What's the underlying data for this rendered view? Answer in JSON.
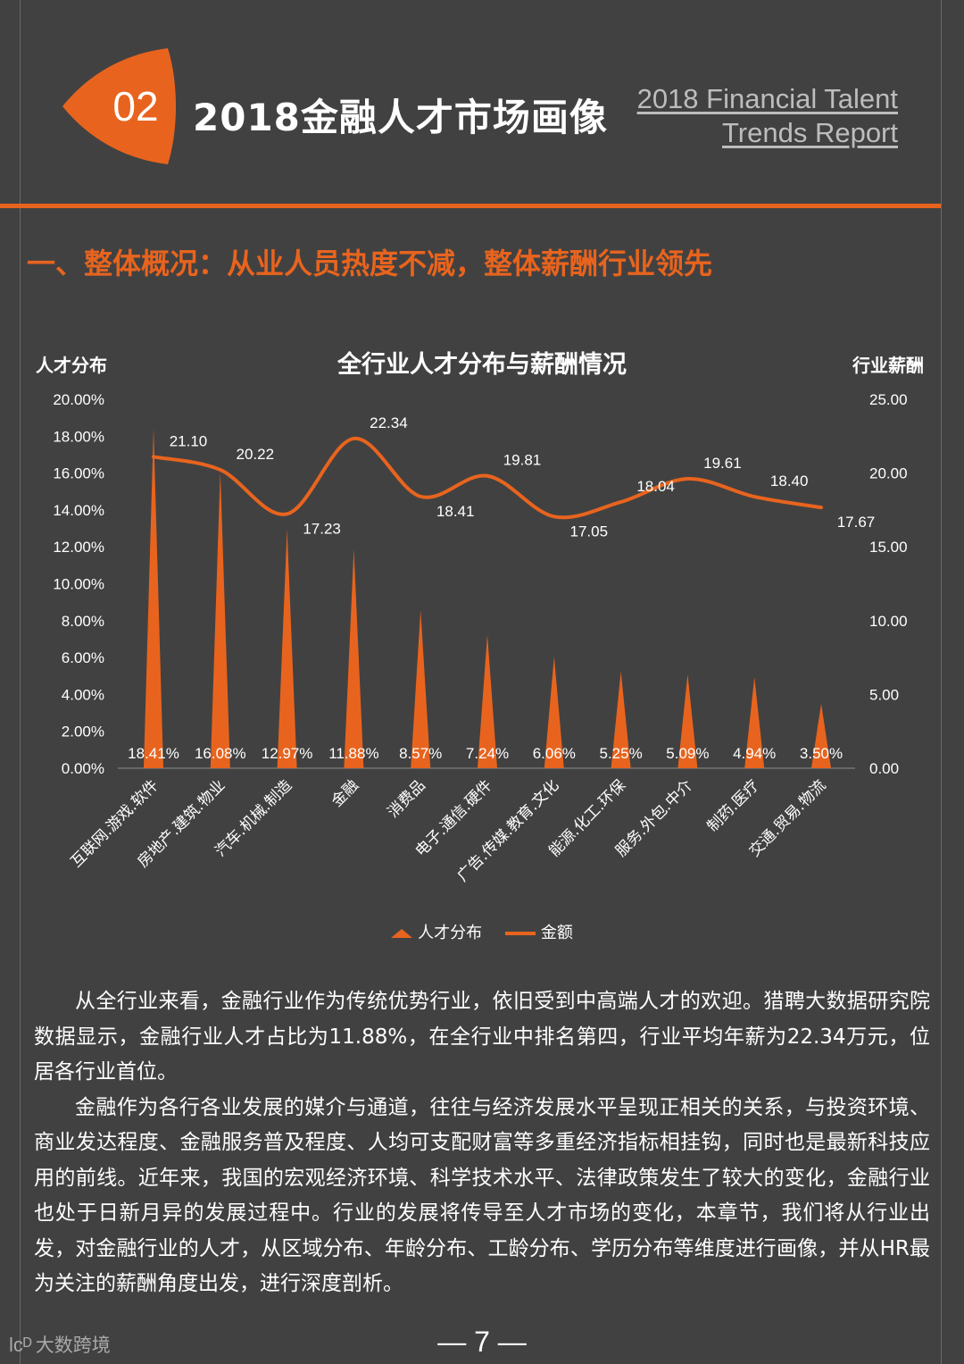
{
  "header": {
    "section_number": "02",
    "title_cn": "2018金融人才市场画像",
    "title_en_line1": "2018 Financial Talent",
    "title_en_line2": "Trends Report"
  },
  "section_heading": "一、整体概况：从业人员热度不减，整体薪酬行业领先",
  "colors": {
    "accent": "#e8641e",
    "background": "#424141"
  },
  "chart_data": {
    "type": "bar",
    "title": "全行业人才分布与薪酬情况",
    "y_left_label": "人才分布",
    "y_right_label": "行业薪酬",
    "y_left_ticks": [
      "20.00%",
      "18.00%",
      "16.00%",
      "14.00%",
      "12.00%",
      "10.00%",
      "8.00%",
      "6.00%",
      "4.00%",
      "2.00%",
      "0.00%"
    ],
    "y_right_ticks": [
      "25.00",
      "20.00",
      "15.00",
      "10.00",
      "5.00",
      "0.00"
    ],
    "ylim_left": [
      0,
      20
    ],
    "ylim_right": [
      0,
      25
    ],
    "categories": [
      "互联网.游戏.软件",
      "房地产.建筑.物业",
      "汽车.机械.制造",
      "金融",
      "消费品",
      "电子.通信.硬件",
      "广告.传媒.教育.文化",
      "能源.化工.环保",
      "服务.外包.中介",
      "制药.医疗",
      "交通.贸易.物流"
    ],
    "series": [
      {
        "name": "人才分布",
        "type": "triangle-bar",
        "axis": "left",
        "values": [
          18.41,
          16.08,
          12.97,
          11.88,
          8.57,
          7.24,
          6.06,
          5.25,
          5.09,
          4.94,
          3.5
        ],
        "labels": [
          "18.41%",
          "16.08%",
          "12.97%",
          "11.88%",
          "8.57%",
          "7.24%",
          "6.06%",
          "5.25%",
          "5.09%",
          "4.94%",
          "3.50%"
        ]
      },
      {
        "name": "金额",
        "type": "smooth-line",
        "axis": "right",
        "values": [
          21.1,
          20.22,
          17.23,
          22.34,
          18.41,
          19.81,
          17.05,
          18.04,
          19.61,
          18.4,
          17.67
        ],
        "labels": [
          "21.10",
          "20.22",
          "17.23",
          "22.34",
          "18.41",
          "19.81",
          "17.05",
          "18.04",
          "19.61",
          "18.40",
          "17.67"
        ]
      }
    ],
    "legend_position": "bottom",
    "grid": false
  },
  "body": {
    "paragraph1": "从全行业来看，金融行业作为传统优势行业，依旧受到中高端人才的欢迎。猎聘大数据研究院数据显示，金融行业人才占比为11.88%，在全行业中排名第四，行业平均年薪为22.34万元，位居各行业首位。",
    "paragraph2": "金融作为各行各业发展的媒介与通道，往往与经济发展水平呈现正相关的关系，与投资环境、商业发达程度、金融服务普及程度、人均可支配财富等多重经济指标相挂钩，同时也是最新科技应用的前线。近年来，我国的宏观经济环境、科学技术水平、法律政策发生了较大的变化，金融行业也处于日新月异的发展过程中。行业的发展将传导至人才市场的变化，本章节，我们将从行业出发，对金融行业的人才，从区域分布、年龄分布、工龄分布、学历分布等维度进行画像，并从HR最为关注的薪酬角度出发，进行深度剖析。"
  },
  "footer": {
    "logo_mark": "lᴄᴰ",
    "logo_text": "大数跨境",
    "page_number": "— 7 —"
  }
}
